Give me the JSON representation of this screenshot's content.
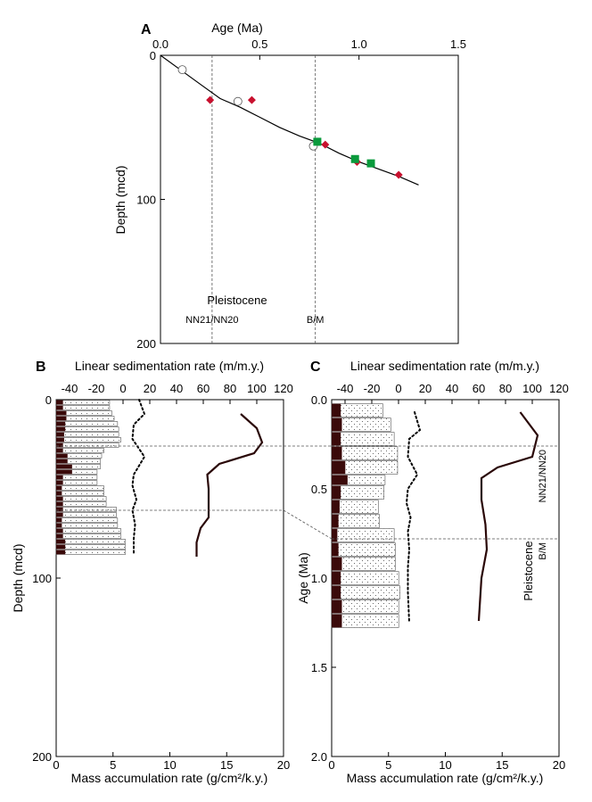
{
  "chart_data": [
    {
      "panel": "A",
      "type": "scatter",
      "xlabel": "Age (Ma)",
      "ylabel": "Depth (mcd)",
      "xlim": [
        0,
        1.5
      ],
      "ylim": [
        0,
        200
      ],
      "xticks": [
        "0.0",
        "0.5",
        "1.0",
        "1.5"
      ],
      "yticks": [
        "0",
        "100",
        "200"
      ],
      "age_depth_line": [
        [
          0,
          0
        ],
        [
          0.1,
          10
        ],
        [
          0.2,
          20
        ],
        [
          0.3,
          30
        ],
        [
          0.4,
          36
        ],
        [
          0.5,
          43
        ],
        [
          0.6,
          50
        ],
        [
          0.7,
          56
        ],
        [
          0.8,
          61
        ],
        [
          0.9,
          68
        ],
        [
          1.0,
          74
        ],
        [
          1.1,
          79
        ],
        [
          1.2,
          84
        ],
        [
          1.3,
          90
        ]
      ],
      "open_circles": [
        [
          0.11,
          10
        ],
        [
          0.39,
          32
        ],
        [
          0.77,
          63
        ]
      ],
      "red_diamonds": [
        [
          0.25,
          31
        ],
        [
          0.46,
          31
        ],
        [
          0.83,
          62
        ],
        [
          0.99,
          74
        ],
        [
          1.2,
          83
        ]
      ],
      "green_squares": [
        [
          0.79,
          60
        ],
        [
          0.98,
          72
        ],
        [
          1.06,
          75
        ]
      ],
      "boundaries": [
        {
          "age": 0.26,
          "label": "NN21/NN20"
        },
        {
          "age": 0.78,
          "label": "B/M"
        }
      ],
      "annotation": "Pleistocene"
    },
    {
      "panel": "B",
      "type": "bar",
      "ylabel": "Depth (mcd)",
      "xlabel_top": "Linear sedimentation rate (m/m.y.)",
      "xlabel_bottom": "Mass accumulation rate (g/cm²/k.y.)",
      "top_ticks": [
        "-40",
        "-20",
        "0",
        "20",
        "40",
        "60",
        "80",
        "100",
        "120"
      ],
      "bottom_ticks": [
        "0",
        "5",
        "10",
        "15",
        "20"
      ],
      "yticks": [
        "0",
        "100",
        "200"
      ],
      "ylim": [
        0,
        200
      ],
      "mar_xlim": [
        0,
        20
      ],
      "intervals": [
        [
          0,
          3
        ],
        [
          3,
          6
        ],
        [
          6,
          9
        ],
        [
          9,
          12
        ],
        [
          12,
          15
        ],
        [
          15,
          18
        ],
        [
          18,
          21
        ],
        [
          21,
          24
        ],
        [
          24,
          27
        ],
        [
          27,
          30
        ],
        [
          30,
          33
        ],
        [
          33,
          36
        ],
        [
          36,
          39
        ],
        [
          39,
          42
        ],
        [
          42,
          45
        ],
        [
          45,
          48
        ],
        [
          48,
          51
        ],
        [
          51,
          54
        ],
        [
          54,
          57
        ],
        [
          57,
          60
        ],
        [
          60,
          63
        ],
        [
          63,
          66
        ],
        [
          66,
          69
        ],
        [
          69,
          72
        ],
        [
          72,
          75
        ],
        [
          75,
          78
        ],
        [
          78,
          81
        ],
        [
          81,
          84
        ],
        [
          84,
          87
        ]
      ],
      "bulk_mar": [
        4.7,
        4.7,
        4.9,
        5.1,
        5.4,
        5.5,
        5.5,
        5.7,
        5.5,
        4.2,
        4.0,
        3.9,
        3.9,
        3.6,
        3.6,
        3.6,
        4.2,
        4.2,
        4.4,
        4.4,
        5.3,
        5.3,
        5.4,
        5.4,
        5.7,
        5.7,
        6.1,
        6.1,
        6.1
      ],
      "carbonate_mar": [
        0.6,
        0.6,
        0.9,
        0.9,
        0.8,
        0.8,
        0.7,
        0.7,
        0.6,
        0.6,
        1.0,
        1.0,
        1.4,
        1.4,
        0.6,
        0.6,
        0.5,
        0.5,
        0.6,
        0.6,
        0.6,
        0.6,
        0.5,
        0.5,
        0.6,
        0.6,
        0.8,
        0.8,
        0.8
      ],
      "dotted_curve": [
        [
          12,
          0
        ],
        [
          16,
          8
        ],
        [
          8,
          14
        ],
        [
          7,
          22
        ],
        [
          16,
          32
        ],
        [
          8,
          42
        ],
        [
          7,
          48
        ],
        [
          10,
          56
        ],
        [
          7,
          62
        ],
        [
          9,
          70
        ],
        [
          8,
          78
        ],
        [
          8,
          86
        ]
      ],
      "solid_curve": [
        [
          88,
          8
        ],
        [
          100,
          16
        ],
        [
          104,
          24
        ],
        [
          98,
          30
        ],
        [
          72,
          36
        ],
        [
          63,
          42
        ],
        [
          64,
          50
        ],
        [
          64,
          58
        ],
        [
          64,
          66
        ],
        [
          58,
          72
        ],
        [
          55,
          80
        ],
        [
          55,
          88
        ]
      ],
      "boundary_depths": [
        26,
        62
      ]
    },
    {
      "panel": "C",
      "type": "bar",
      "ylabel": "Age (Ma)",
      "xlabel_top": "Linear sedimentation rate (m/m.y.)",
      "xlabel_bottom": "Mass accumulation rate (g/cm²/k.y.)",
      "top_ticks": [
        "-40",
        "-20",
        "0",
        "20",
        "40",
        "60",
        "80",
        "100",
        "120"
      ],
      "bottom_ticks": [
        "0",
        "5",
        "10",
        "15",
        "20"
      ],
      "yticks": [
        "0.0",
        "0.5",
        "1.0",
        "1.5",
        "2.0"
      ],
      "ylim": [
        0,
        2
      ],
      "mar_xlim": [
        0,
        20
      ],
      "intervals": [
        [
          0.02,
          0.1
        ],
        [
          0.1,
          0.18
        ],
        [
          0.18,
          0.26
        ],
        [
          0.26,
          0.34
        ],
        [
          0.34,
          0.42
        ],
        [
          0.42,
          0.48
        ],
        [
          0.48,
          0.56
        ],
        [
          0.56,
          0.64
        ],
        [
          0.64,
          0.72
        ],
        [
          0.72,
          0.8
        ],
        [
          0.8,
          0.88
        ],
        [
          0.88,
          0.96
        ],
        [
          0.96,
          1.04
        ],
        [
          1.04,
          1.12
        ],
        [
          1.12,
          1.2
        ],
        [
          1.2,
          1.28
        ]
      ],
      "bulk_mar": [
        4.5,
        5.2,
        5.5,
        5.8,
        5.8,
        4.7,
        4.6,
        4.1,
        4.2,
        5.5,
        5.6,
        5.6,
        5.9,
        6.0,
        5.9,
        5.9
      ],
      "carbonate_mar": [
        0.8,
        0.9,
        0.8,
        0.9,
        1.2,
        1.4,
        0.8,
        0.7,
        0.6,
        0.5,
        0.6,
        0.9,
        0.8,
        0.8,
        0.9,
        0.9
      ],
      "dotted_curve": [
        [
          12,
          0.07
        ],
        [
          16,
          0.17
        ],
        [
          8,
          0.22
        ],
        [
          7,
          0.32
        ],
        [
          14,
          0.42
        ],
        [
          7,
          0.5
        ],
        [
          6,
          0.58
        ],
        [
          9,
          0.66
        ],
        [
          7,
          0.74
        ],
        [
          8,
          0.84
        ],
        [
          7,
          0.94
        ],
        [
          7,
          1.08
        ],
        [
          8,
          1.25
        ]
      ],
      "solid_curve": [
        [
          91,
          0.07
        ],
        [
          104,
          0.2
        ],
        [
          100,
          0.32
        ],
        [
          74,
          0.38
        ],
        [
          62,
          0.44
        ],
        [
          62,
          0.56
        ],
        [
          65,
          0.7
        ],
        [
          66,
          0.84
        ],
        [
          62,
          1.0
        ],
        [
          60,
          1.24
        ]
      ],
      "boundaries": [
        {
          "age": 0.26,
          "label": "NN21/NN20"
        },
        {
          "age": 0.78,
          "label": "B/M"
        }
      ],
      "annotation": "Pleistocene"
    }
  ]
}
